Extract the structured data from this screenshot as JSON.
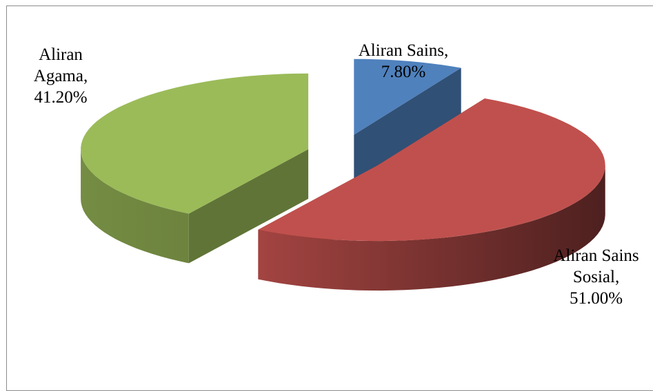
{
  "chart_data": {
    "type": "pie3d",
    "categories": [
      "Aliran Sains",
      "Aliran Sains Sosial",
      "Aliran Agama"
    ],
    "values": [
      7.8,
      51.0,
      41.2
    ],
    "value_labels": [
      "7.80%",
      "51.00%",
      "41.20%"
    ],
    "label_separator": ",",
    "colors": [
      "#4f81bd",
      "#c0504d",
      "#9bbb59"
    ]
  }
}
